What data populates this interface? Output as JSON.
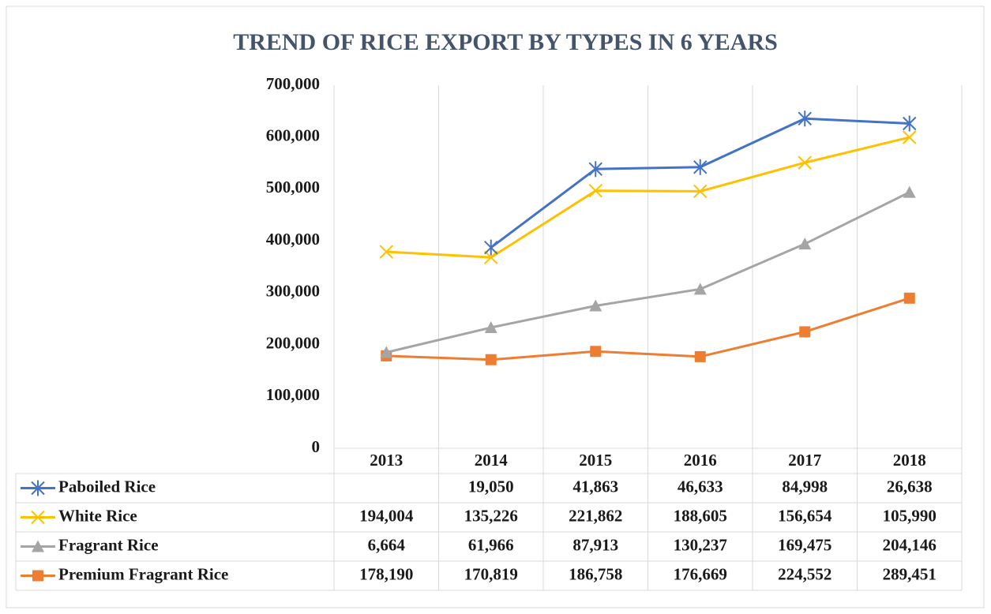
{
  "chart_data": {
    "type": "line",
    "stacked": true,
    "title": "TREND OF RICE EXPORT BY TYPES IN 6 YEARS",
    "categories": [
      "2013",
      "2014",
      "2015",
      "2016",
      "2017",
      "2018"
    ],
    "series": [
      {
        "name": "Paboiled Rice",
        "color": "#4472c4",
        "marker": "asterisk",
        "values": [
          null,
          19050,
          41863,
          46633,
          84998,
          26638
        ],
        "value_labels": [
          null,
          "19,050",
          "41,863",
          "46,633",
          "84,998",
          "26,638"
        ]
      },
      {
        "name": "White Rice",
        "color": "#ffc000",
        "marker": "x",
        "values": [
          194004,
          135226,
          221862,
          188605,
          156654,
          105990
        ],
        "value_labels": [
          "194,004",
          "135,226",
          "221,862",
          "188,605",
          "156,654",
          "105,990"
        ]
      },
      {
        "name": "Fragrant Rice",
        "color": "#a5a5a5",
        "marker": "triangle",
        "values": [
          6664,
          61966,
          87913,
          130237,
          169475,
          204146
        ],
        "value_labels": [
          "6,664",
          "61,966",
          "87,913",
          "130,237",
          "169,475",
          "204,146"
        ]
      },
      {
        "name": "Premium Fragrant Rice",
        "color": "#ed7d31",
        "marker": "square",
        "values": [
          178190,
          170819,
          186758,
          176669,
          224552,
          289451
        ],
        "value_labels": [
          "178,190",
          "170,819",
          "186,758",
          "176,669",
          "224,552",
          "289,451"
        ]
      }
    ],
    "ylim": [
      0,
      700000
    ],
    "yticks": [
      0,
      {
        "value": 100000,
        "label": "100,000"
      },
      {
        "value": 200000,
        "label": "200,000"
      },
      {
        "value": 300000,
        "label": "300,000"
      },
      {
        "value": 400000,
        "label": "400,000"
      },
      {
        "value": 500000,
        "label": "500,000"
      },
      {
        "value": 600000,
        "label": "600,000"
      },
      {
        "value": 700000,
        "label": "700,000"
      }
    ],
    "grid": "vertical"
  }
}
